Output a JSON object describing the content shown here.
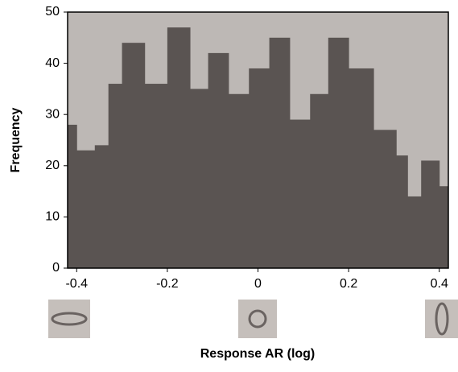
{
  "chart_data": {
    "type": "histogram",
    "xlabel": "Response AR (log)",
    "ylabel": "Frequency",
    "bins": [
      -0.42,
      -0.4,
      -0.36,
      -0.33,
      -0.3,
      -0.25,
      -0.2,
      -0.15,
      -0.11,
      -0.065,
      -0.02,
      0.025,
      0.07,
      0.115,
      0.155,
      0.2,
      0.255,
      0.305,
      0.33,
      0.36,
      0.4,
      0.42
    ],
    "values": [
      28,
      23,
      24,
      36,
      44,
      36,
      47,
      35,
      42,
      34,
      39,
      45,
      29,
      34,
      45,
      39,
      27,
      22,
      14,
      21,
      16
    ],
    "color": "#5a5452",
    "background": "#bdb8b5",
    "xlim": [
      -0.42,
      0.42
    ],
    "xticks": [
      -0.4,
      -0.2,
      0,
      0.2,
      0.4
    ],
    "ylim": [
      0,
      50
    ],
    "yticks": [
      0,
      10,
      20,
      30,
      40,
      50
    ]
  }
}
